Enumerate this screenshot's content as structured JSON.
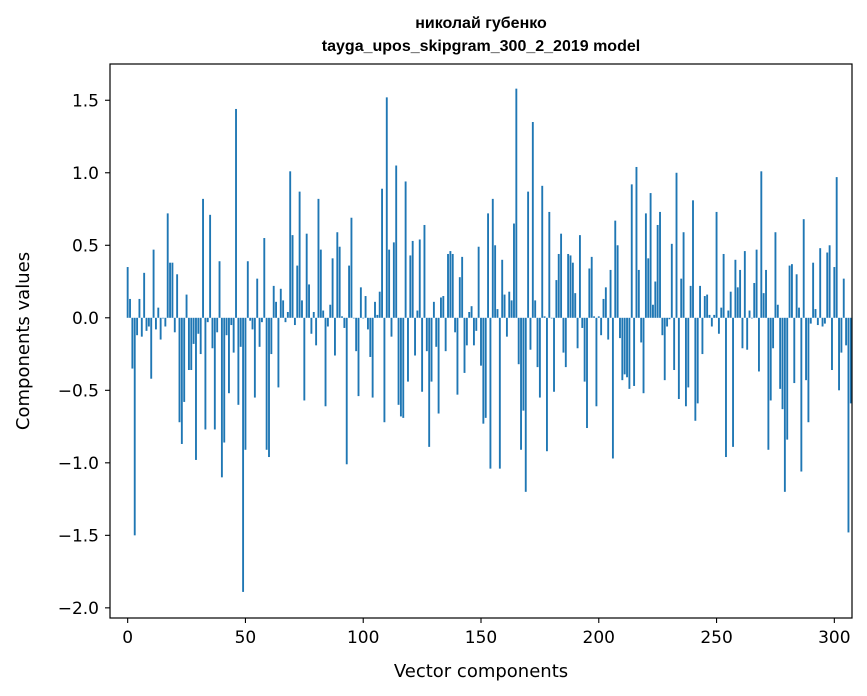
{
  "chart_data": {
    "type": "bar",
    "title": "николай губенко",
    "subtitle": "tayga_upos_skipgram_300_2_2019 model",
    "xlabel": "Vector components",
    "ylabel": "Components values",
    "xlim": [
      -7.5,
      307.5
    ],
    "ylim": [
      -2.07,
      1.75
    ],
    "xticks": [
      0,
      50,
      100,
      150,
      200,
      250,
      300
    ],
    "yticks": [
      -2.0,
      -1.5,
      -1.0,
      -0.5,
      0.0,
      0.5,
      1.0,
      1.5
    ],
    "ytick_labels": [
      "−2.0",
      "−1.5",
      "−1.0",
      "−0.5",
      "0.0",
      "0.5",
      "1.0",
      "1.5"
    ],
    "bar_color": "#1f77b4",
    "values": [
      0.35,
      0.13,
      -0.35,
      -1.5,
      -0.12,
      0.13,
      -0.13,
      0.31,
      -0.09,
      -0.06,
      -0.42,
      0.47,
      -0.08,
      0.07,
      -0.15,
      0.0,
      -0.06,
      0.72,
      0.38,
      0.38,
      -0.1,
      0.3,
      -0.72,
      -0.87,
      -0.58,
      0.16,
      -0.36,
      -0.36,
      -0.18,
      -0.98,
      -0.11,
      -0.25,
      0.82,
      -0.77,
      -0.03,
      0.71,
      -0.21,
      -0.77,
      -0.1,
      0.39,
      -1.1,
      -0.86,
      -0.12,
      -0.52,
      -0.05,
      -0.24,
      1.44,
      -0.6,
      -0.2,
      -1.89,
      -0.91,
      0.39,
      -0.02,
      -0.08,
      -0.55,
      0.27,
      -0.2,
      -0.03,
      0.55,
      -0.91,
      -0.96,
      -0.25,
      0.22,
      0.11,
      -0.48,
      0.2,
      0.12,
      -0.03,
      0.04,
      1.01,
      0.57,
      -0.05,
      0.36,
      0.87,
      0.12,
      -0.57,
      0.58,
      0.23,
      -0.11,
      0.04,
      -0.19,
      0.82,
      0.47,
      0.05,
      -0.61,
      -0.06,
      0.09,
      0.41,
      -0.26,
      0.59,
      0.49,
      0.01,
      -0.07,
      -1.01,
      0.36,
      0.69,
      0.0,
      -0.23,
      -0.54,
      0.21,
      0.0,
      0.15,
      -0.08,
      -0.27,
      -0.55,
      0.11,
      0.02,
      0.18,
      0.89,
      -0.72,
      1.52,
      0.47,
      -0.13,
      0.52,
      1.05,
      -0.6,
      -0.68,
      -0.69,
      0.94,
      -0.44,
      0.43,
      0.53,
      -0.26,
      0.05,
      0.54,
      -0.51,
      0.64,
      -0.23,
      -0.89,
      -0.44,
      0.11,
      -0.2,
      -0.66,
      0.14,
      0.15,
      -0.23,
      0.44,
      0.46,
      0.44,
      -0.1,
      -0.53,
      0.28,
      0.42,
      -0.38,
      -0.19,
      0.04,
      0.08,
      -0.19,
      -0.09,
      0.49,
      -0.33,
      -0.73,
      -0.69,
      0.72,
      -1.04,
      0.82,
      0.5,
      0.06,
      -1.04,
      0.4,
      0.16,
      -0.13,
      0.18,
      0.12,
      0.65,
      1.58,
      -0.32,
      -0.91,
      -0.64,
      -1.2,
      0.87,
      -0.22,
      1.35,
      0.12,
      -0.34,
      -0.55,
      0.91,
      0.01,
      -0.92,
      0.73,
      0.0,
      -0.51,
      0.26,
      0.44,
      0.58,
      -0.24,
      -0.34,
      0.44,
      0.43,
      0.38,
      0.17,
      -0.21,
      0.57,
      -0.07,
      -0.44,
      -0.76,
      0.34,
      0.42,
      0.01,
      -0.61,
      0.01,
      -0.12,
      0.13,
      0.21,
      -0.15,
      0.33,
      -0.97,
      0.67,
      0.5,
      -0.14,
      -0.43,
      -0.39,
      -0.41,
      -0.49,
      0.92,
      -0.47,
      1.04,
      0.33,
      -0.17,
      -0.52,
      0.72,
      0.41,
      0.86,
      0.09,
      0.25,
      0.64,
      0.73,
      -0.12,
      -0.43,
      -0.06,
      -0.01,
      0.51,
      -0.36,
      1.0,
      -0.56,
      0.27,
      0.59,
      -0.61,
      -0.48,
      0.22,
      0.81,
      -0.71,
      -0.59,
      0.22,
      -0.25,
      0.15,
      0.16,
      0.02,
      -0.06,
      0.02,
      0.73,
      -0.11,
      0.07,
      0.44,
      -0.96,
      0.05,
      0.18,
      -0.89,
      0.4,
      0.21,
      0.33,
      -0.21,
      0.46,
      -0.22,
      0.05,
      0.0,
      0.24,
      0.47,
      -0.37,
      1.01,
      0.17,
      0.33,
      -0.91,
      -0.57,
      -0.21,
      0.59,
      0.09,
      -0.49,
      -0.63,
      -1.2,
      -0.84,
      0.36,
      0.37,
      -0.45,
      0.3,
      0.07,
      -1.06,
      0.68,
      -0.43,
      -0.72,
      -0.04,
      0.38,
      0.06,
      -0.05,
      0.48,
      -0.06,
      -0.04,
      0.45,
      0.5,
      -0.36,
      0.35,
      0.97,
      -0.5,
      -0.24,
      0.27,
      -0.19,
      -1.48,
      -0.59
    ]
  }
}
